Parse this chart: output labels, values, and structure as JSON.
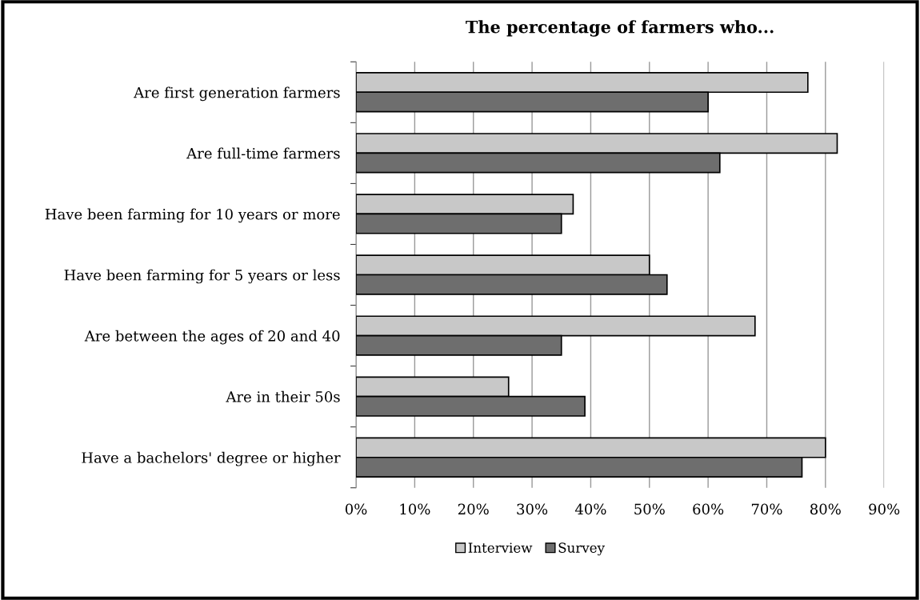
{
  "chart_data": {
    "type": "bar",
    "orientation": "horizontal",
    "title": "The percentage of farmers who...",
    "categories": [
      "Are first generation farmers",
      "Are full-time farmers",
      "Have been farming for 10 years or more",
      "Have been farming for 5 years or less",
      "Are between the ages of 20 and 40",
      "Are in their 50s",
      "Have a bachelors' degree or higher"
    ],
    "series": [
      {
        "name": "Interview",
        "color": "#c8c8c8",
        "values": [
          77,
          82,
          37,
          50,
          68,
          26,
          80
        ]
      },
      {
        "name": "Survey",
        "color": "#6e6e6e",
        "values": [
          60,
          62,
          35,
          53,
          35,
          39,
          76
        ]
      }
    ],
    "xlim": [
      0,
      90
    ],
    "xticks": [
      {
        "value": 0,
        "label": "0%"
      },
      {
        "value": 10,
        "label": "10%"
      },
      {
        "value": 20,
        "label": "20%"
      },
      {
        "value": 30,
        "label": "30%"
      },
      {
        "value": 40,
        "label": "40%"
      },
      {
        "value": 50,
        "label": "50%"
      },
      {
        "value": 60,
        "label": "60%"
      },
      {
        "value": 70,
        "label": "70%"
      },
      {
        "value": 80,
        "label": "80%"
      },
      {
        "value": 90,
        "label": "90%"
      }
    ],
    "grid": "x",
    "legend": "bottom"
  }
}
